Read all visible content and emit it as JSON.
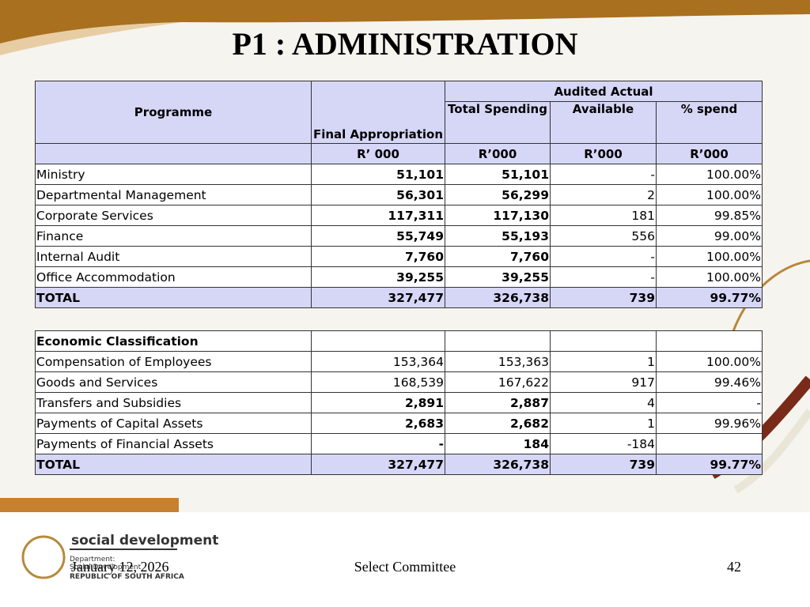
{
  "title": "P1 : ADMINISTRATION",
  "table": {
    "header": {
      "programme": "Programme",
      "final": "Final Appropriation",
      "audited": "Audited Actual",
      "total_spending": "Total Spending",
      "available": "Available",
      "pct": "% spend",
      "units": [
        "R’ 000",
        "R’000",
        "R’000",
        "R’000"
      ]
    },
    "rows": [
      [
        "Ministry",
        "51,101",
        "51,101",
        "-",
        "100.00%"
      ],
      [
        "Departmental  Management",
        "56,301",
        "56,299",
        "2",
        "100.00%"
      ],
      [
        "Corporate Services",
        "117,311",
        "117,130",
        "181",
        "99.85%"
      ],
      [
        "Finance",
        "55,749",
        "55,193",
        "556",
        "99.00%"
      ],
      [
        "Internal Audit",
        "7,760",
        "7,760",
        "-",
        "100.00%"
      ],
      [
        "Office Accommodation",
        "39,255",
        "39,255",
        "-",
        "100.00%"
      ]
    ],
    "total": [
      "TOTAL",
      "327,477",
      "326,738",
      "739",
      "99.77%"
    ]
  },
  "table2": {
    "header": "Economic Classification",
    "rows": [
      [
        "Compensation of Employees",
        "153,364",
        "153,363",
        "1",
        "100.00%"
      ],
      [
        "Goods and Services",
        "168,539",
        "167,622",
        "917",
        "99.46%"
      ],
      [
        "Transfers and Subsidies",
        "2,891",
        "2,887",
        "4",
        "-"
      ],
      [
        "Payments of Capital Assets",
        "2,683",
        "2,682",
        "1",
        "99.96%"
      ],
      [
        "Payments of Financial Assets",
        "-",
        "184",
        "-184",
        null
      ]
    ],
    "total": [
      "TOTAL",
      "327,477",
      "326,738",
      "739",
      "99.77%"
    ]
  },
  "footer": {
    "date": "January 12, 2026",
    "center": "Select Committee",
    "page": "42"
  },
  "logo": {
    "name": "social development",
    "dept": "Department:",
    "dept2": "Social Development",
    "country": "REPUBLIC OF SOUTH AFRICA"
  }
}
